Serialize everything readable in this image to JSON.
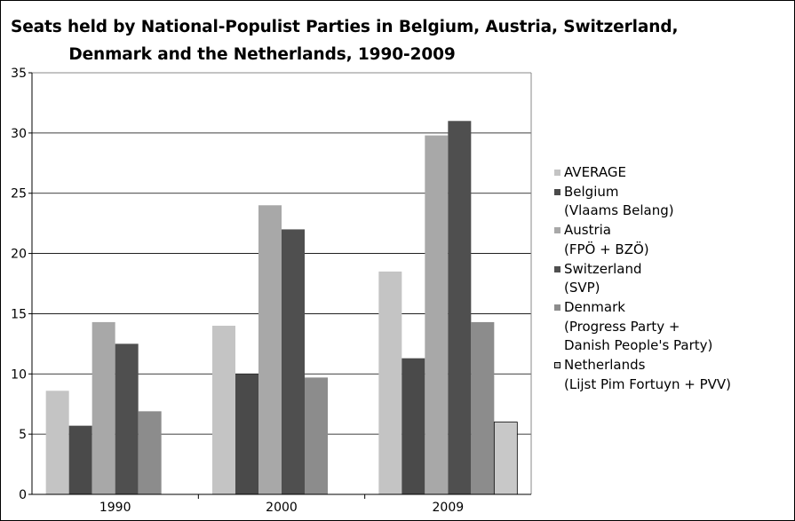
{
  "chart_data": {
    "type": "bar",
    "title_line1": "Seats held by National-Populist Parties in Belgium, Austria, Switzerland,",
    "title_line2": "Denmark and the Netherlands, 1990-2009",
    "categories": [
      "1990",
      "2000",
      "2009"
    ],
    "ylim": [
      0,
      35
    ],
    "yticks": [
      "0",
      "5",
      "10",
      "15",
      "20",
      "25",
      "30",
      "35"
    ],
    "grid": true,
    "legend_position": "right",
    "series": [
      {
        "name_lines": [
          "AVERAGE"
        ],
        "color": "#c4c4c4",
        "values": [
          8.6,
          14.0,
          18.5
        ]
      },
      {
        "name_lines": [
          "Belgium",
          "(Vlaams Belang)"
        ],
        "color": "#4a4a4a",
        "values": [
          5.7,
          10.0,
          11.3
        ]
      },
      {
        "name_lines": [
          "Austria",
          "(FPÖ + BZÖ)"
        ],
        "color": "#a8a8a8",
        "values": [
          14.3,
          24.0,
          29.8
        ]
      },
      {
        "name_lines": [
          "Switzerland",
          "(SVP)"
        ],
        "color": "#4f4f4f",
        "values": [
          12.5,
          22.0,
          31.0
        ]
      },
      {
        "name_lines": [
          "Denmark",
          "(Progress Party +",
          "Danish People's Party)"
        ],
        "color": "#8c8c8c",
        "values": [
          6.9,
          9.7,
          14.3
        ]
      },
      {
        "name_lines": [
          "Netherlands",
          "(Lijst Pim Fortuyn + PVV)"
        ],
        "color": "#c8c8c8",
        "values": [
          null,
          null,
          6.0
        ]
      }
    ]
  }
}
